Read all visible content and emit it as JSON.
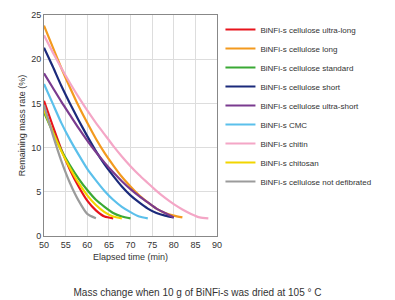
{
  "chart_data": {
    "type": "line",
    "title": "Mass change when 10 g of BiNFi-s was dried at 105 ° C",
    "x_label": "Elapsed time (min)",
    "y_label": "Remaining mass rate (%)",
    "x": [
      50,
      52,
      54,
      56,
      58,
      60,
      62,
      64,
      66,
      68,
      70,
      72,
      74,
      76,
      78,
      80,
      82,
      84,
      86,
      88
    ],
    "series": [
      {
        "name": "BiNFi-s cellulose ultra-long",
        "color": "#e8141c",
        "values": [
          15.3,
          12.5,
          9.8,
          7.5,
          5.6,
          4.0,
          2.9,
          2.2,
          2.0,
          null,
          null,
          null,
          null,
          null,
          null,
          null,
          null,
          null,
          null,
          null
        ]
      },
      {
        "name": "BiNFi-s cellulose long",
        "color": "#f39a1e",
        "values": [
          23.8,
          21.4,
          19.0,
          16.8,
          14.7,
          12.8,
          11.0,
          9.4,
          8.0,
          6.7,
          5.6,
          4.6,
          3.8,
          3.1,
          2.6,
          2.3,
          2.1,
          null,
          null,
          null
        ]
      },
      {
        "name": "BiNFi-s cellulose standard",
        "color": "#3aa935",
        "values": [
          14.0,
          11.8,
          9.7,
          8.0,
          6.5,
          5.2,
          4.1,
          3.3,
          2.6,
          2.2,
          2.0,
          null,
          null,
          null,
          null,
          null,
          null,
          null,
          null,
          null
        ]
      },
      {
        "name": "BiNFi-s cellulose short",
        "color": "#1b2a7b",
        "values": [
          21.3,
          19.2,
          17.0,
          15.0,
          13.1,
          11.3,
          9.6,
          8.1,
          6.8,
          5.6,
          4.6,
          3.8,
          3.1,
          2.6,
          2.3,
          2.1,
          null,
          null,
          null,
          null
        ]
      },
      {
        "name": "BiNFi-s cellulose ultra-short",
        "color": "#7a3b8f",
        "values": [
          18.4,
          16.8,
          15.2,
          13.7,
          12.2,
          10.8,
          9.5,
          8.3,
          7.2,
          6.2,
          5.3,
          4.5,
          3.8,
          3.1,
          2.6,
          2.1,
          null,
          null,
          null,
          null
        ]
      },
      {
        "name": "BiNFi-s CMC",
        "color": "#5bc0eb",
        "values": [
          17.2,
          15.0,
          12.8,
          10.9,
          9.2,
          7.6,
          6.3,
          5.1,
          4.1,
          3.3,
          2.7,
          2.2,
          2.0,
          null,
          null,
          null,
          null,
          null,
          null,
          null
        ]
      },
      {
        "name": "BiNFi-s chitin",
        "color": "#f4a6c6",
        "values": [
          22.7,
          20.8,
          19.0,
          17.3,
          15.7,
          14.2,
          12.8,
          11.5,
          10.2,
          9.0,
          7.9,
          6.9,
          6.0,
          5.1,
          4.3,
          3.6,
          3.0,
          2.5,
          2.1,
          2.0
        ]
      },
      {
        "name": "BiNFi-s chitosan",
        "color": "#f2d500",
        "values": [
          14.3,
          11.8,
          9.6,
          7.7,
          6.0,
          4.6,
          3.5,
          2.7,
          2.2,
          2.0,
          null,
          null,
          null,
          null,
          null,
          null,
          null,
          null,
          null,
          null
        ]
      },
      {
        "name": "BiNFi-s cellulose not defibrated",
        "color": "#9b9b9b",
        "values": [
          14.8,
          11.5,
          8.5,
          6.0,
          4.0,
          2.5,
          2.0,
          null,
          null,
          null,
          null,
          null,
          null,
          null,
          null,
          null,
          null,
          null,
          null,
          null
        ]
      }
    ],
    "xlim": [
      50,
      90
    ],
    "xticks": [
      50,
      55,
      60,
      65,
      70,
      75,
      80,
      85,
      90
    ],
    "ylim": [
      0,
      25
    ],
    "yticks": [
      0,
      5,
      10,
      15,
      20,
      25
    ],
    "grid": true,
    "legend": "right"
  }
}
